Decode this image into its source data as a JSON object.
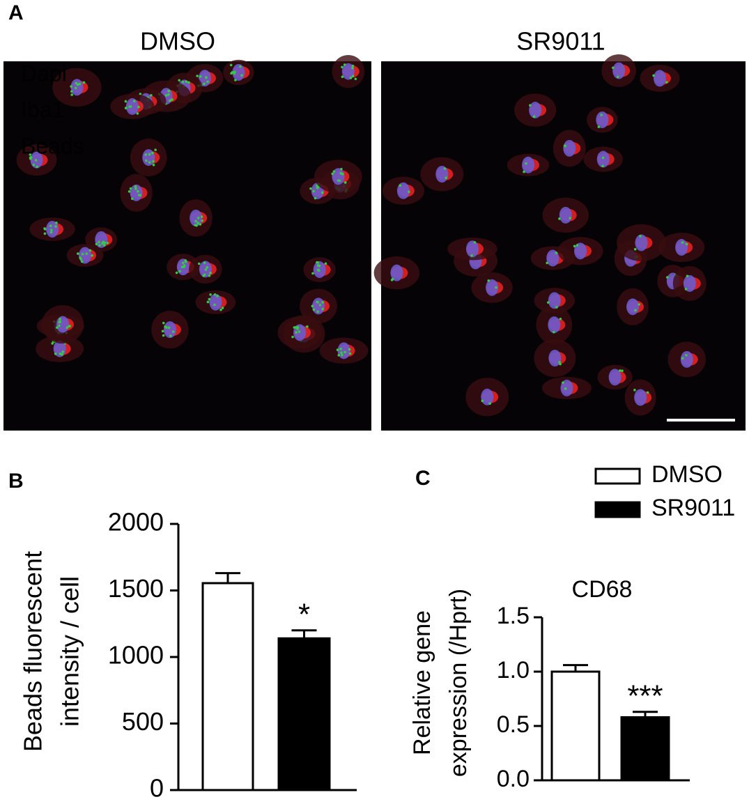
{
  "panel_a": {
    "label": "A",
    "images": [
      "DMSO",
      "SR9011"
    ],
    "channels": [
      {
        "name": "Dapi",
        "color": "#6a5acd"
      },
      {
        "name": "Iba1",
        "color": "#ee2222"
      },
      {
        "name": "Beads",
        "color": "#33cc44"
      }
    ]
  },
  "chart_data": [
    {
      "type": "bar",
      "panel": "B",
      "ylabel": [
        "Beads fluorescent",
        "intensity / cell"
      ],
      "categories": [
        null
      ],
      "series": [
        {
          "color": "#ffffff",
          "values": [
            1555
          ],
          "errors": [
            75
          ]
        },
        {
          "color": "#000000",
          "values": [
            1140
          ],
          "errors": [
            60
          ]
        }
      ],
      "annotations": [
        "*"
      ],
      "ylim": [
        0,
        2000
      ],
      "yticks": [
        0,
        500,
        1000,
        1500,
        2000
      ]
    },
    {
      "type": "bar",
      "panel": "C",
      "title": "CD68",
      "ylabel": [
        "Relative gene",
        "expression (/Hprt)"
      ],
      "categories": [
        null
      ],
      "series": [
        {
          "name": "DMSO",
          "color": "#ffffff",
          "values": [
            1.0
          ],
          "errors": [
            0.06
          ]
        },
        {
          "name": "SR9011",
          "color": "#000000",
          "values": [
            0.58
          ],
          "errors": [
            0.05
          ]
        }
      ],
      "annotations": [
        "***"
      ],
      "legend": "top-right",
      "ylim": [
        0,
        1.5
      ],
      "yticks": [
        {
          "value": 0,
          "label": "0.0"
        },
        {
          "value": 0.5,
          "label": "0.5"
        },
        {
          "value": 1,
          "label": "1.0"
        },
        {
          "value": 1.5,
          "label": "1.5"
        }
      ]
    }
  ]
}
